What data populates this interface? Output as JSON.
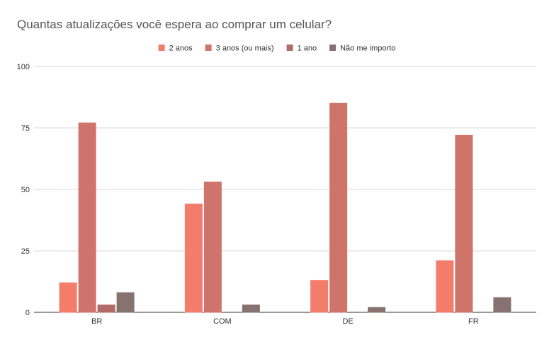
{
  "chart_data": {
    "type": "bar",
    "title": "Quantas atualizações você espera ao comprar um celular?",
    "xlabel": "",
    "ylabel": "",
    "categories": [
      "BR",
      "COM",
      "DE",
      "FR"
    ],
    "ylim": [
      0,
      100
    ],
    "yticks": [
      0,
      25,
      50,
      75,
      100
    ],
    "grid": true,
    "legend_position": "top",
    "series": [
      {
        "name": "2 anos",
        "color": "#f47c6b",
        "values": [
          12,
          44,
          13,
          21
        ]
      },
      {
        "name": "3 anos (ou mais)",
        "color": "#cf746b",
        "values": [
          77,
          53,
          85,
          72
        ]
      },
      {
        "name": "1 ano",
        "color": "#b26c67",
        "values": [
          3,
          0,
          0,
          0
        ]
      },
      {
        "name": "Não me importo",
        "color": "#86726f",
        "values": [
          8,
          3,
          2,
          6
        ]
      }
    ]
  }
}
